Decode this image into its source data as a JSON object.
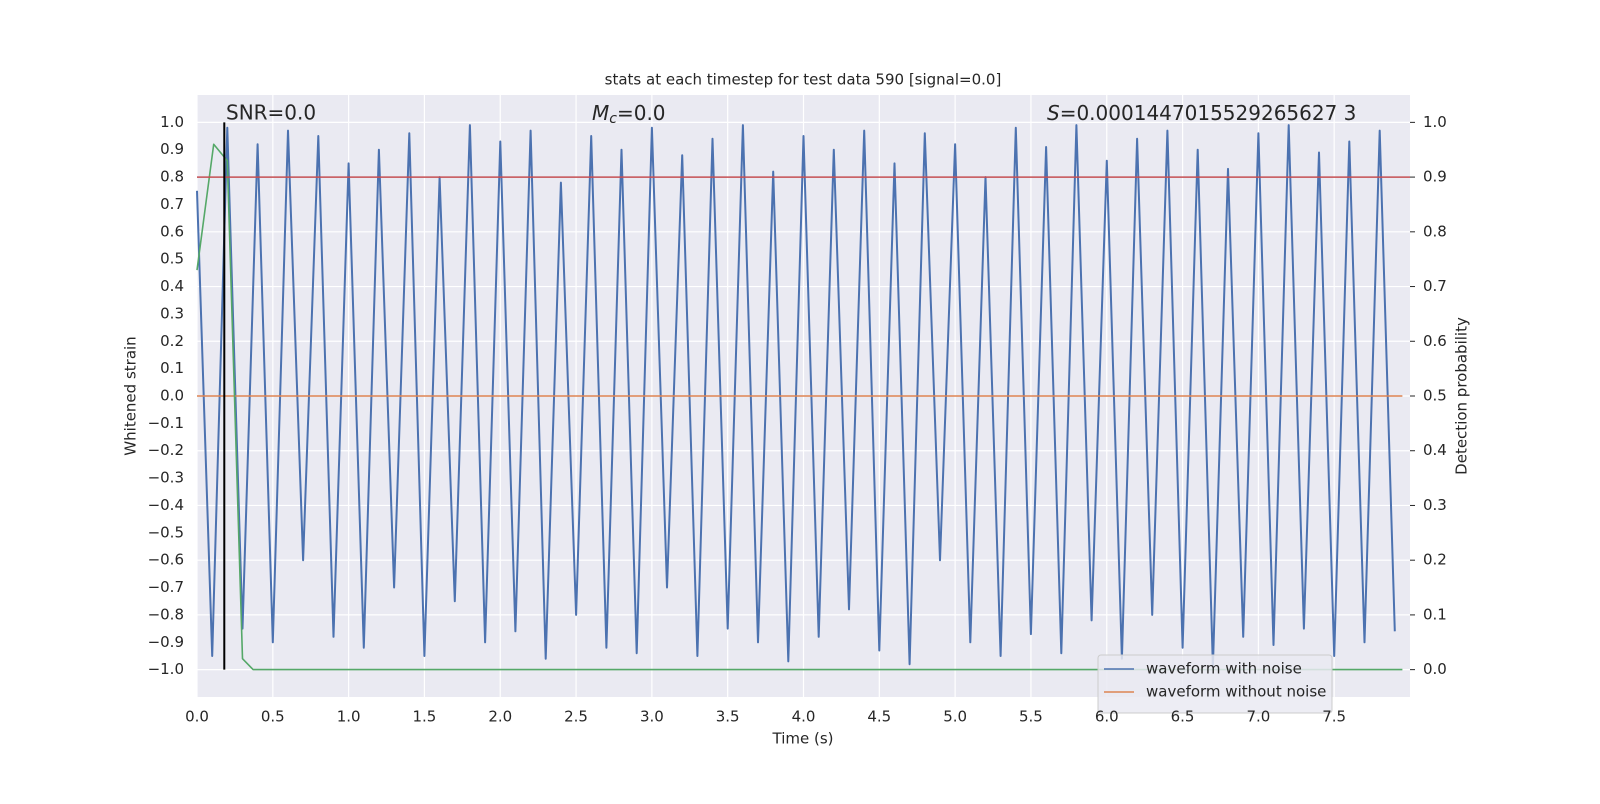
{
  "chart_data": {
    "type": "line",
    "title": "stats at each timestep for test data 590 [signal=0.0]",
    "xlabel": "Time (s)",
    "ylabel": "Whitened strain",
    "y2label": "Detection probability",
    "xlim": [
      0,
      8
    ],
    "ylim": [
      -1.1,
      1.1
    ],
    "y2lim": [
      -0.05,
      1.05
    ],
    "xticks": [
      {
        "value": 0,
        "label": "0.0"
      },
      {
        "value": 0.5,
        "label": "0.5"
      },
      {
        "value": 1,
        "label": "1.0"
      },
      {
        "value": 1.5,
        "label": "1.5"
      },
      {
        "value": 2,
        "label": "2.0"
      },
      {
        "value": 2.5,
        "label": "2.5"
      },
      {
        "value": 3,
        "label": "3.0"
      },
      {
        "value": 3.5,
        "label": "3.5"
      },
      {
        "value": 4,
        "label": "4.0"
      },
      {
        "value": 4.5,
        "label": "4.5"
      },
      {
        "value": 5,
        "label": "5.0"
      },
      {
        "value": 5.5,
        "label": "5.5"
      },
      {
        "value": 6,
        "label": "6.0"
      },
      {
        "value": 6.5,
        "label": "6.5"
      },
      {
        "value": 7,
        "label": "7.0"
      },
      {
        "value": 7.5,
        "label": "7.5"
      }
    ],
    "yticks": [
      {
        "value": 1,
        "label": "1.0"
      },
      {
        "value": 0.9,
        "label": "0.9"
      },
      {
        "value": 0.8,
        "label": "0.8"
      },
      {
        "value": 0.7,
        "label": "0.7"
      },
      {
        "value": 0.6,
        "label": "0.6"
      },
      {
        "value": 0.5,
        "label": "0.5"
      },
      {
        "value": 0.4,
        "label": "0.4"
      },
      {
        "value": 0.3,
        "label": "0.3"
      },
      {
        "value": 0.2,
        "label": "0.2"
      },
      {
        "value": 0.1,
        "label": "0.1"
      },
      {
        "value": 0,
        "label": "0.0"
      },
      {
        "value": -0.1,
        "label": "−0.1"
      },
      {
        "value": -0.2,
        "label": "−0.2"
      },
      {
        "value": -0.3,
        "label": "−0.3"
      },
      {
        "value": -0.4,
        "label": "−0.4"
      },
      {
        "value": -0.5,
        "label": "−0.5"
      },
      {
        "value": -0.6,
        "label": "−0.6"
      },
      {
        "value": -0.7,
        "label": "−0.7"
      },
      {
        "value": -0.8,
        "label": "−0.8"
      },
      {
        "value": -0.9,
        "label": "−0.9"
      },
      {
        "value": -1,
        "label": "−1.0"
      }
    ],
    "y2ticks": [
      {
        "value": 0,
        "label": "0.0"
      },
      {
        "value": 0.1,
        "label": "0.1"
      },
      {
        "value": 0.2,
        "label": "0.2"
      },
      {
        "value": 0.3,
        "label": "0.3"
      },
      {
        "value": 0.4,
        "label": "0.4"
      },
      {
        "value": 0.5,
        "label": "0.5"
      },
      {
        "value": 0.6,
        "label": "0.6"
      },
      {
        "value": 0.7,
        "label": "0.7"
      },
      {
        "value": 0.8,
        "label": "0.8"
      },
      {
        "value": 0.9,
        "label": "0.9"
      },
      {
        "value": 1,
        "label": "1.0"
      }
    ],
    "grid": true,
    "legend": "lower right",
    "annotations": [
      {
        "text": "SNR=0.0"
      },
      {
        "symbol": "M",
        "subscript": "c",
        "text": "=0.0"
      },
      {
        "symbol": "S",
        "text": "=0.0001447015529265627 3"
      }
    ],
    "vline": {
      "x": 0.18,
      "color": "#000000"
    },
    "hline": {
      "value": 0.9,
      "axis": "y2",
      "color": "#c44e52"
    },
    "series": [
      {
        "name": "waveform with noise",
        "color": "#4c72b0",
        "x": [
          0,
          0.1,
          0.2,
          0.3,
          0.4,
          0.5,
          0.6,
          0.7,
          0.8,
          0.9,
          1,
          1.1,
          1.2,
          1.3,
          1.4,
          1.5,
          1.6,
          1.7,
          1.8,
          1.9,
          2,
          2.1,
          2.2,
          2.3,
          2.4,
          2.5,
          2.6,
          2.7,
          2.8,
          2.9,
          3,
          3.1,
          3.2,
          3.3,
          3.4,
          3.5,
          3.6,
          3.7,
          3.8,
          3.9,
          4,
          4.1,
          4.2,
          4.3,
          4.4,
          4.5,
          4.6,
          4.7,
          4.8,
          4.9,
          5,
          5.1,
          5.2,
          5.3,
          5.4,
          5.5,
          5.6,
          5.7,
          5.8,
          5.9,
          6,
          6.1,
          6.2,
          6.3,
          6.4,
          6.5,
          6.6,
          6.7,
          6.8,
          6.9,
          7,
          7.1,
          7.2,
          7.3,
          7.4,
          7.5,
          7.6,
          7.7,
          7.8,
          7.9
        ],
        "values": [
          0.75,
          -0.95,
          0.98,
          -0.85,
          0.92,
          -0.9,
          0.97,
          -0.6,
          0.95,
          -0.88,
          0.85,
          -0.92,
          0.9,
          -0.7,
          0.96,
          -0.95,
          0.8,
          -0.75,
          0.99,
          -0.9,
          0.93,
          -0.86,
          0.97,
          -0.96,
          0.78,
          -0.8,
          0.95,
          -0.92,
          0.9,
          -0.94,
          0.98,
          -0.7,
          0.88,
          -0.95,
          0.94,
          -0.85,
          0.99,
          -0.9,
          0.82,
          -0.97,
          0.95,
          -0.88,
          0.9,
          -0.78,
          0.97,
          -0.93,
          0.85,
          -0.98,
          0.96,
          -0.6,
          0.92,
          -0.9,
          0.8,
          -0.95,
          0.98,
          -0.87,
          0.91,
          -0.94,
          0.99,
          -0.82,
          0.86,
          -0.96,
          0.94,
          -0.8,
          0.97,
          -0.92,
          0.9,
          -0.99,
          0.83,
          -0.88,
          0.96,
          -0.91,
          0.99,
          -0.85,
          0.89,
          -0.95,
          0.93,
          -0.9,
          0.97,
          -0.86
        ]
      },
      {
        "name": "waveform without noise",
        "color": "#dd8452",
        "x": [
          0,
          7.95
        ],
        "values": [
          0,
          0
        ]
      },
      {
        "color": "#55a868",
        "axis": "y2",
        "x": [
          0,
          0.11,
          0.2,
          0.3,
          0.37,
          7.95
        ],
        "values": [
          0.73,
          0.96,
          0.93,
          0.02,
          0,
          0
        ]
      }
    ]
  }
}
